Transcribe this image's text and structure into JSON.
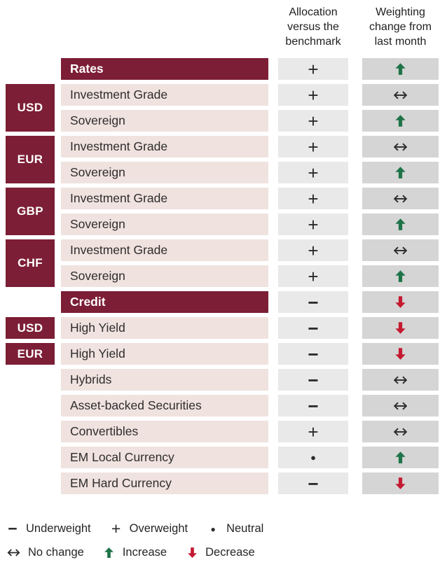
{
  "header": {
    "col1": "Allocation\nversus the\nbenchmark",
    "col2": "Weighting\nchange from\nlast month"
  },
  "rows": [
    {
      "type": "section",
      "label": "Rates",
      "allocation": "plus",
      "weighting": "up"
    },
    {
      "type": "item",
      "currency": "USD",
      "span": 2,
      "label": "Investment Grade",
      "allocation": "plus",
      "weighting": "nochange"
    },
    {
      "type": "item",
      "label": "Sovereign",
      "allocation": "plus",
      "weighting": "up"
    },
    {
      "type": "item",
      "currency": "EUR",
      "span": 2,
      "label": "Investment Grade",
      "allocation": "plus",
      "weighting": "nochange"
    },
    {
      "type": "item",
      "label": "Sovereign",
      "allocation": "plus",
      "weighting": "up"
    },
    {
      "type": "item",
      "currency": "GBP",
      "span": 2,
      "label": "Investment Grade",
      "allocation": "plus",
      "weighting": "nochange"
    },
    {
      "type": "item",
      "label": "Sovereign",
      "allocation": "plus",
      "weighting": "up"
    },
    {
      "type": "item",
      "currency": "CHF",
      "span": 2,
      "label": "Investment Grade",
      "allocation": "plus",
      "weighting": "nochange"
    },
    {
      "type": "item",
      "label": "Sovereign",
      "allocation": "plus",
      "weighting": "up"
    },
    {
      "type": "section",
      "label": "Credit",
      "allocation": "minus",
      "weighting": "down"
    },
    {
      "type": "item",
      "currency": "USD",
      "span": 1,
      "label": "High Yield",
      "allocation": "minus",
      "weighting": "down"
    },
    {
      "type": "item",
      "currency": "EUR",
      "span": 1,
      "label": "High Yield",
      "allocation": "minus",
      "weighting": "down"
    },
    {
      "type": "item",
      "label": "Hybrids",
      "allocation": "minus",
      "weighting": "nochange"
    },
    {
      "type": "item",
      "label": "Asset-backed Securities",
      "allocation": "minus",
      "weighting": "nochange"
    },
    {
      "type": "item",
      "label": "Convertibles",
      "allocation": "plus",
      "weighting": "nochange"
    },
    {
      "type": "item",
      "label": "EM Local Currency",
      "allocation": "dot",
      "weighting": "up"
    },
    {
      "type": "item",
      "label": "EM Hard Currency",
      "allocation": "minus",
      "weighting": "down"
    }
  ],
  "symbols": {
    "plus": "+",
    "minus": "−",
    "dot": "●"
  },
  "legend": {
    "line1": [
      {
        "symbol": "minus",
        "label": "Underweight"
      },
      {
        "symbol": "plus",
        "label": "Overweight"
      },
      {
        "symbol": "dot",
        "label": "Neutral"
      }
    ],
    "line2": [
      {
        "symbol": "nochange",
        "label": "No change"
      },
      {
        "symbol": "up",
        "label": "Increase"
      },
      {
        "symbol": "down",
        "label": "Decrease"
      }
    ]
  },
  "colors": {
    "maroon": "#7c1e35",
    "row_pink": "#f0e2de",
    "alloc_gray": "#e9e9e9",
    "weight_gray": "#d5d5d5",
    "increase_green": "#1e7448",
    "decrease_red": "#c41a31",
    "text_dark": "#2b2b2b"
  }
}
